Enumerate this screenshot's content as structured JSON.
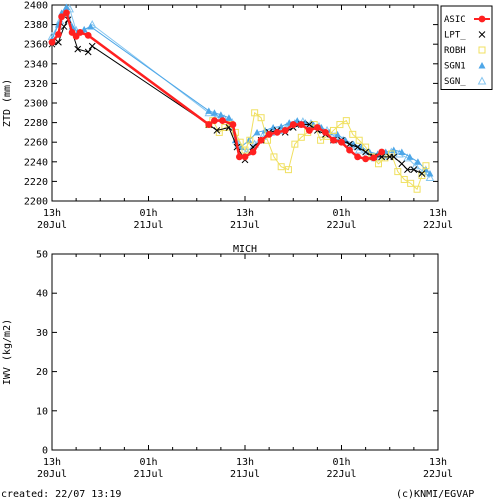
{
  "chart_data": [
    {
      "type": "scatter",
      "title": "",
      "ylabel": "ZTD (mm)",
      "xlabel": "",
      "ylim": [
        2200,
        2400
      ],
      "yticks": [
        2200,
        2220,
        2240,
        2260,
        2280,
        2300,
        2320,
        2340,
        2360,
        2380,
        2400
      ],
      "xlim": [
        0,
        48
      ],
      "x_unit": "hours since 20Jul 13h",
      "x_tick_labels": [
        {
          "t": 0,
          "top": "13h",
          "bottom": "20Jul"
        },
        {
          "t": 12,
          "top": "01h",
          "bottom": "21Jul"
        },
        {
          "t": 24,
          "top": "13h",
          "bottom": "21Jul"
        },
        {
          "t": 36,
          "top": "01h",
          "bottom": "22Jul"
        },
        {
          "t": 48,
          "top": "13h",
          "bottom": "22Jul"
        }
      ],
      "legend_position": "top-right",
      "series": [
        {
          "name": "ASIC",
          "color": "#ff2020",
          "marker": "dot",
          "x": [
            0,
            0.8,
            1.2,
            1.8,
            2.5,
            3.0,
            3.5,
            4.5,
            19.5,
            20.2,
            21.2,
            22.5,
            23.3,
            24.0,
            25.0,
            26.0,
            27.0,
            28.0,
            29.0,
            30.0,
            31.0,
            32.0,
            33.0,
            34.0,
            35.0,
            36.0,
            37.0,
            38.0,
            39.0,
            40.0,
            41.0
          ],
          "y": [
            2362,
            2370,
            2388,
            2392,
            2372,
            2368,
            2372,
            2369,
            2278,
            2282,
            2282,
            2278,
            2245,
            2245,
            2250,
            2262,
            2268,
            2270,
            2272,
            2278,
            2278,
            2272,
            2275,
            2270,
            2262,
            2260,
            2252,
            2245,
            2243,
            2244,
            2250
          ]
        },
        {
          "name": "LPT_",
          "color": "#000000",
          "marker": "x",
          "x": [
            0,
            0.8,
            1.5,
            2.0,
            3.2,
            4.5,
            5.0,
            19.5,
            20.5,
            22.0,
            23.0,
            24.0,
            25.0,
            26.0,
            27.0,
            28.0,
            29.0,
            30.0,
            31.0,
            32.0,
            33.0,
            34.0,
            35.0,
            36.0,
            37.0,
            38.0,
            39.0,
            40.0,
            41.0,
            42.0,
            42.5,
            43.5,
            44.2,
            45.0,
            46.0
          ],
          "y": [
            2360,
            2362,
            2378,
            2385,
            2355,
            2352,
            2358,
            2278,
            2272,
            2275,
            2255,
            2242,
            2255,
            2262,
            2270,
            2272,
            2270,
            2275,
            2278,
            2278,
            2272,
            2268,
            2262,
            2262,
            2258,
            2255,
            2250,
            2245,
            2245,
            2245,
            2245,
            2238,
            2232,
            2232,
            2228
          ]
        },
        {
          "name": "ROBH",
          "color": "#f0e060",
          "marker": "square",
          "x": [
            19.5,
            20.0,
            20.8,
            21.5,
            22.2,
            22.8,
            23.4,
            24.0,
            24.6,
            25.2,
            26.0,
            26.8,
            27.6,
            28.5,
            29.4,
            30.2,
            31.0,
            31.8,
            32.6,
            33.4,
            34.2,
            35.0,
            35.8,
            36.6,
            37.4,
            38.2,
            39.0,
            39.8,
            40.6,
            41.4,
            42.2,
            43.0,
            43.8,
            44.6,
            45.4,
            46.0,
            46.5
          ],
          "y": [
            2278,
            2282,
            2270,
            2275,
            2278,
            2270,
            2260,
            2252,
            2262,
            2290,
            2285,
            2262,
            2245,
            2235,
            2232,
            2258,
            2265,
            2270,
            2278,
            2262,
            2266,
            2272,
            2278,
            2282,
            2268,
            2262,
            2255,
            2245,
            2238,
            2244,
            2248,
            2230,
            2222,
            2218,
            2212,
            2226,
            2236
          ]
        },
        {
          "name": "SGN1",
          "color": "#4ea7e8",
          "marker": "triangle",
          "x": [
            0,
            0.8,
            1.2,
            1.8,
            2.5,
            3.2,
            4.0,
            4.8,
            19.5,
            20.2,
            21.0,
            22.0,
            22.8,
            23.5,
            24.5,
            25.5,
            26.5,
            27.5,
            28.5,
            29.5,
            30.5,
            31.5,
            32.5,
            33.5,
            34.5,
            35.5,
            36.5,
            37.5,
            38.5,
            39.5,
            40.5,
            41.5,
            42.5,
            43.5,
            44.5,
            45.5,
            46.5,
            47.0
          ],
          "y": [
            2365,
            2380,
            2392,
            2398,
            2378,
            2372,
            2375,
            2378,
            2292,
            2290,
            2288,
            2285,
            2262,
            2255,
            2262,
            2270,
            2272,
            2275,
            2276,
            2280,
            2282,
            2280,
            2278,
            2275,
            2270,
            2268,
            2262,
            2258,
            2255,
            2250,
            2248,
            2250,
            2252,
            2250,
            2245,
            2240,
            2232,
            2228
          ]
        },
        {
          "name": "SGN_",
          "color": "#86c6f0",
          "marker": "triangle-open",
          "x": [
            0,
            1.0,
            1.6,
            2.2,
            3.0,
            4.0,
            5.0,
            19.5,
            20.4,
            21.4,
            22.4,
            23.2,
            24.2,
            25.2,
            26.2,
            27.2,
            28.2,
            29.2,
            30.2,
            31.2,
            32.2,
            33.2,
            34.2,
            35.2,
            36.2,
            37.2,
            38.2,
            39.2,
            40.2,
            41.2,
            42.2,
            43.2,
            44.2,
            45.2,
            46.2,
            47.0
          ],
          "y": [
            2368,
            2384,
            2394,
            2396,
            2374,
            2374,
            2380,
            2290,
            2286,
            2284,
            2280,
            2258,
            2250,
            2258,
            2266,
            2270,
            2272,
            2276,
            2279,
            2281,
            2279,
            2276,
            2272,
            2266,
            2262,
            2256,
            2252,
            2248,
            2244,
            2246,
            2250,
            2248,
            2244,
            2236,
            2230,
            2224
          ]
        }
      ]
    },
    {
      "type": "scatter",
      "title": "MICH",
      "ylabel": "IWV (kg/m2)",
      "xlabel": "",
      "ylim": [
        0,
        50
      ],
      "yticks": [
        0,
        10,
        20,
        30,
        40,
        50
      ],
      "xlim": [
        0,
        48
      ],
      "x_unit": "hours since 20Jul 13h",
      "x_tick_labels": [
        {
          "t": 0,
          "top": "13h",
          "bottom": "20Jul"
        },
        {
          "t": 12,
          "top": "01h",
          "bottom": "21Jul"
        },
        {
          "t": 24,
          "top": "13h",
          "bottom": "21Jul"
        },
        {
          "t": 36,
          "top": "01h",
          "bottom": "22Jul"
        },
        {
          "t": 48,
          "top": "13h",
          "bottom": "22Jul"
        }
      ],
      "series": []
    }
  ],
  "footer": {
    "created": "created: 22/07 13:19",
    "credit": "(c)KNMI/EGVAP"
  }
}
